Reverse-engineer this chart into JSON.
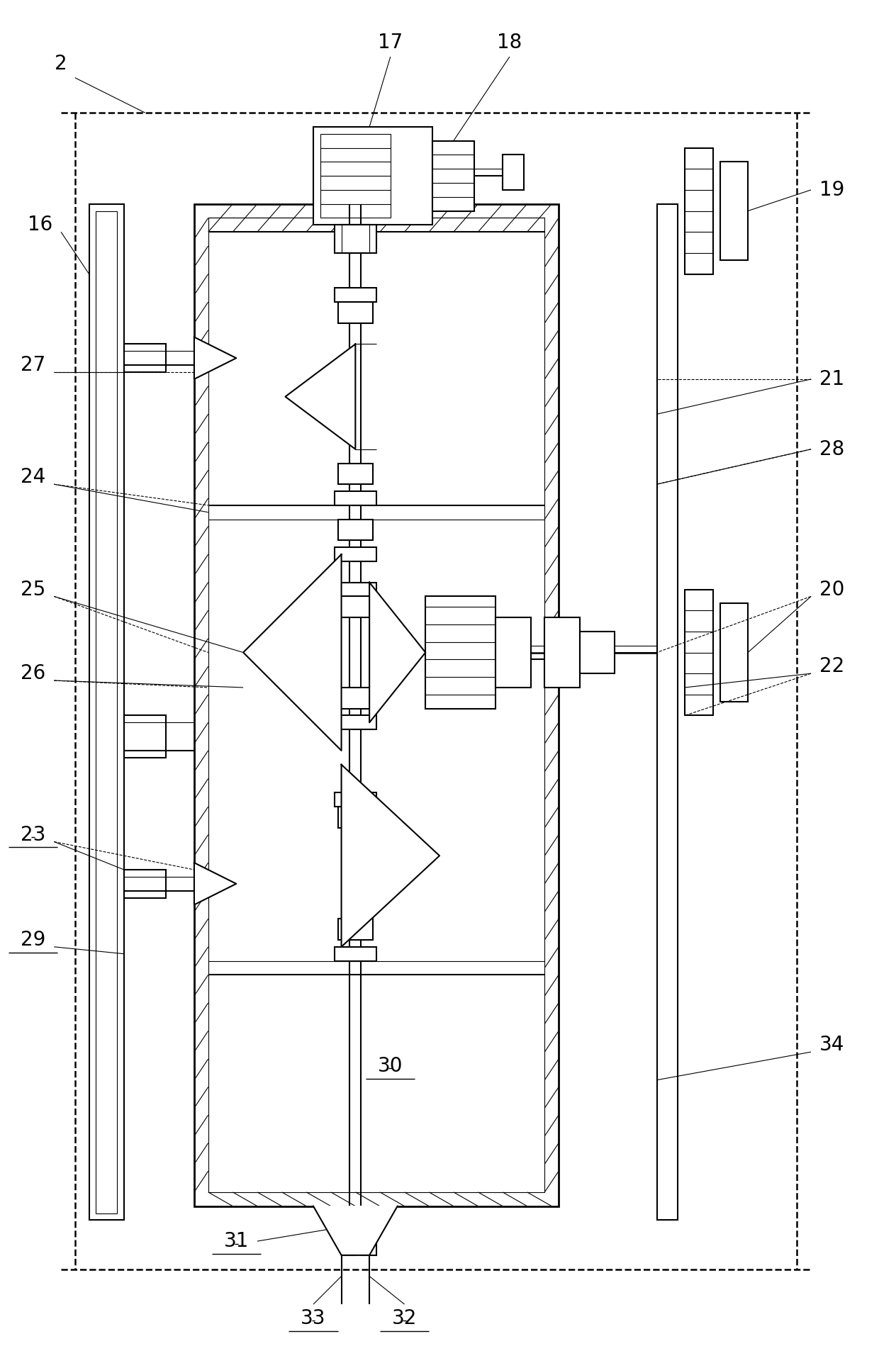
{
  "fig_width": 12.4,
  "fig_height": 19.3,
  "dpi": 100,
  "bg_color": "#ffffff",
  "line_color": "#000000",
  "lw": 1.5,
  "tlw": 0.8,
  "label_fontsize": 20,
  "label_font": "SimSun"
}
